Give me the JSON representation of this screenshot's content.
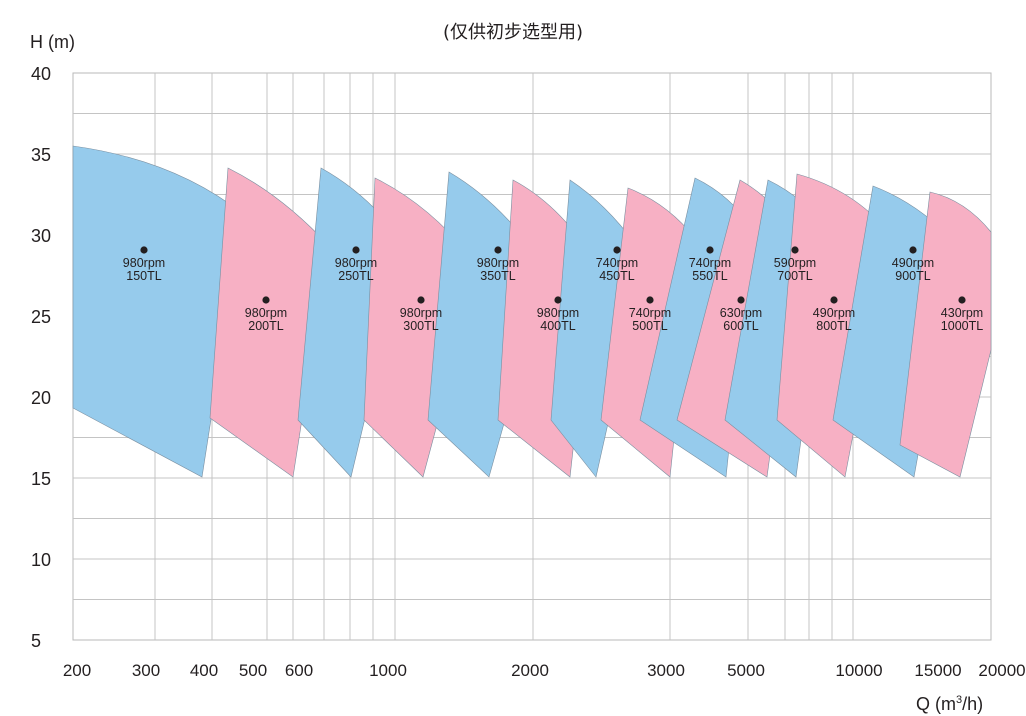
{
  "chart_data": {
    "type": "area",
    "note": "(仅供初步选型用)",
    "xlabel_main": "Q (m",
    "xlabel_sup": "3",
    "xlabel_tail": "/h)",
    "ylabel": "H (m)",
    "x_ticks": [
      "200",
      "300",
      "400",
      "500",
      "600",
      "1000",
      "2000",
      "3000",
      "5000",
      "10000",
      "15000",
      "20000"
    ],
    "y_ticks": [
      "40",
      "35",
      "30",
      "25",
      "20",
      "15",
      "10",
      "5"
    ],
    "ylim": [
      5,
      40
    ],
    "grid": true,
    "series": [
      {
        "label": [
          "980rpm",
          "150TL"
        ],
        "color": "#96cbec"
      },
      {
        "label": [
          "980rpm",
          "200TL"
        ],
        "color": "#f7b0c4"
      },
      {
        "label": [
          "980rpm",
          "250TL"
        ],
        "color": "#96cbec"
      },
      {
        "label": [
          "980rpm",
          "300TL"
        ],
        "color": "#f7b0c4"
      },
      {
        "label": [
          "980rpm",
          "350TL"
        ],
        "color": "#96cbec"
      },
      {
        "label": [
          "980rpm",
          "400TL"
        ],
        "color": "#f7b0c4"
      },
      {
        "label": [
          "740rpm",
          "450TL"
        ],
        "color": "#96cbec"
      },
      {
        "label": [
          "740rpm",
          "500TL"
        ],
        "color": "#f7b0c4"
      },
      {
        "label": [
          "740rpm",
          "550TL"
        ],
        "color": "#96cbec"
      },
      {
        "label": [
          "630rpm",
          "600TL"
        ],
        "color": "#f7b0c4"
      },
      {
        "label": [
          "590rpm",
          "700TL"
        ],
        "color": "#96cbec"
      },
      {
        "label": [
          "490rpm",
          "800TL"
        ],
        "color": "#f7b0c4"
      },
      {
        "label": [
          "490rpm",
          "900TL"
        ],
        "color": "#96cbec"
      },
      {
        "label": [
          "430rpm",
          "1000TL"
        ],
        "color": "#f7b0c4"
      }
    ]
  }
}
